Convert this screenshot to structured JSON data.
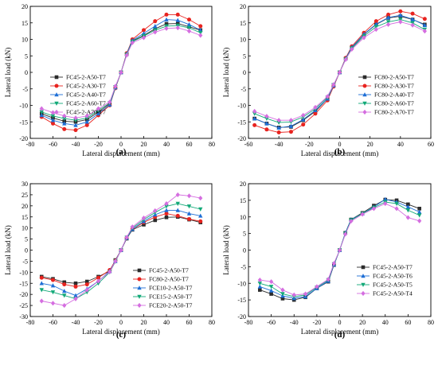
{
  "chart_data": [
    {
      "type": "line",
      "caption": "(a)",
      "xlabel": "Lateral displacement (mm)",
      "ylabel": "Lateral load (kN)",
      "xlim": [
        -80,
        80
      ],
      "ylim": [
        -20,
        20
      ],
      "xticks": [
        -80,
        -60,
        -40,
        -20,
        0,
        20,
        40,
        60,
        80
      ],
      "yticks": [
        -20,
        -15,
        -10,
        -5,
        0,
        5,
        10,
        15,
        20
      ],
      "legend": "bottom-left",
      "series": [
        {
          "name": "FC45-2-A50-T7",
          "color": "#2b2b2b",
          "marker": "square",
          "x": [
            -70,
            -60,
            -50,
            -40,
            -30,
            -20,
            -10,
            -5,
            0,
            5,
            10,
            20,
            30,
            40,
            50,
            60,
            70
          ],
          "y": [
            -12.5,
            -13.8,
            -14.8,
            -15.0,
            -14.3,
            -12.0,
            -9.5,
            -4.5,
            0,
            5.5,
            9.5,
            11.2,
            13.2,
            14.7,
            14.8,
            13.8,
            12.8
          ]
        },
        {
          "name": "FC45-2-A30-T7",
          "color": "#e8231f",
          "marker": "circle",
          "x": [
            -70,
            -60,
            -50,
            -40,
            -30,
            -20,
            -10,
            -5,
            0,
            5,
            10,
            20,
            30,
            40,
            50,
            60,
            70
          ],
          "y": [
            -13.5,
            -15.5,
            -17.2,
            -17.5,
            -16.0,
            -13.0,
            -10.0,
            -4.8,
            0,
            5.8,
            10.0,
            12.8,
            15.5,
            17.5,
            17.5,
            16.0,
            14.0
          ]
        },
        {
          "name": "FC45-2-A40-T7",
          "color": "#1e6fd6",
          "marker": "triangle",
          "x": [
            -70,
            -60,
            -50,
            -40,
            -30,
            -20,
            -10,
            -5,
            0,
            5,
            10,
            20,
            30,
            40,
            50,
            60,
            70
          ],
          "y": [
            -13.0,
            -14.5,
            -15.5,
            -16.0,
            -15.0,
            -12.5,
            -9.8,
            -4.6,
            0,
            5.6,
            9.7,
            11.8,
            14.0,
            16.0,
            15.8,
            14.5,
            12.8
          ]
        },
        {
          "name": "FC45-2-A60-T7",
          "color": "#12a978",
          "marker": "tri-down",
          "x": [
            -70,
            -60,
            -50,
            -40,
            -30,
            -20,
            -10,
            -5,
            0,
            5,
            10,
            20,
            30,
            40,
            50,
            60,
            70
          ],
          "y": [
            -12.0,
            -13.2,
            -14.0,
            -14.5,
            -13.8,
            -11.5,
            -9.3,
            -4.4,
            0,
            5.4,
            9.3,
            11.0,
            12.8,
            14.0,
            14.2,
            13.5,
            12.0
          ]
        },
        {
          "name": "FC45-2-A70-T7",
          "color": "#d56ee0",
          "marker": "diamond",
          "x": [
            -70,
            -60,
            -50,
            -40,
            -30,
            -20,
            -10,
            -5,
            0,
            5,
            10,
            20,
            30,
            40,
            50,
            60,
            70
          ],
          "y": [
            -11.0,
            -12.2,
            -13.2,
            -13.8,
            -13.2,
            -11.0,
            -9.0,
            -4.2,
            0,
            5.2,
            9.0,
            10.5,
            12.2,
            13.3,
            13.5,
            12.5,
            11.2
          ]
        }
      ]
    },
    {
      "type": "line",
      "caption": "(b)",
      "xlabel": "Lateral displacement (mm)",
      "ylabel": "Lateral load (kN)",
      "xlim": [
        -60,
        60
      ],
      "ylim": [
        -20,
        20
      ],
      "xticks": [
        -60,
        -40,
        -20,
        0,
        20,
        40,
        60
      ],
      "yticks": [
        -20,
        -15,
        -10,
        -5,
        0,
        5,
        10,
        15,
        20
      ],
      "legend": "bottom-right",
      "series": [
        {
          "name": "FC80-2-A50-T7",
          "color": "#2b2b2b",
          "marker": "square",
          "x": [
            -56,
            -48,
            -40,
            -32,
            -24,
            -16,
            -8,
            -4,
            0,
            4,
            8,
            16,
            24,
            32,
            40,
            48,
            56
          ],
          "y": [
            -14.0,
            -15.5,
            -16.7,
            -16.5,
            -14.5,
            -11.8,
            -8.0,
            -4.0,
            0,
            4.2,
            7.5,
            11.5,
            14.5,
            16.5,
            17.0,
            16.0,
            14.5
          ]
        },
        {
          "name": "FC80-2-A30-T7",
          "color": "#e8231f",
          "marker": "circle",
          "x": [
            -56,
            -48,
            -40,
            -32,
            -24,
            -16,
            -8,
            -4,
            0,
            4,
            8,
            16,
            24,
            32,
            40,
            48,
            56
          ],
          "y": [
            -16.0,
            -17.3,
            -18.2,
            -18.0,
            -15.8,
            -12.5,
            -8.5,
            -4.3,
            0,
            4.4,
            7.9,
            12.0,
            15.5,
            17.5,
            18.5,
            17.8,
            16.2
          ]
        },
        {
          "name": "FC80-2-A40-T7",
          "color": "#1e6fd6",
          "marker": "triangle",
          "x": [
            -56,
            -48,
            -40,
            -32,
            -24,
            -16,
            -8,
            -4,
            0,
            4,
            8,
            16,
            24,
            32,
            40,
            48,
            56
          ],
          "y": [
            -14.0,
            -15.5,
            -16.8,
            -16.3,
            -14.3,
            -11.5,
            -8.0,
            -4.0,
            0,
            4.2,
            7.6,
            11.6,
            14.6,
            16.6,
            17.3,
            16.1,
            14.3
          ]
        },
        {
          "name": "FC80-2-A60-T7",
          "color": "#12a978",
          "marker": "tri-down",
          "x": [
            -56,
            -48,
            -40,
            -32,
            -24,
            -16,
            -8,
            -4,
            0,
            4,
            8,
            16,
            24,
            32,
            40,
            48,
            56
          ],
          "y": [
            -12.5,
            -14.0,
            -15.2,
            -15.0,
            -13.5,
            -11.0,
            -7.6,
            -3.8,
            0,
            4.0,
            7.3,
            11.0,
            13.8,
            15.3,
            16.0,
            15.0,
            13.0
          ]
        },
        {
          "name": "FC80-2-A70-T7",
          "color": "#d56ee0",
          "marker": "diamond",
          "x": [
            -56,
            -48,
            -40,
            -32,
            -24,
            -16,
            -8,
            -4,
            0,
            4,
            8,
            16,
            24,
            32,
            40,
            48,
            56
          ],
          "y": [
            -11.8,
            -13.3,
            -14.5,
            -14.5,
            -13.0,
            -10.6,
            -7.3,
            -3.7,
            0,
            3.9,
            7.0,
            10.5,
            13.0,
            14.5,
            15.3,
            14.3,
            12.5
          ]
        }
      ]
    },
    {
      "type": "line",
      "caption": "(c)",
      "xlabel": "Lateral displacement (mm)",
      "ylabel": "Lateral load (kN)",
      "xlim": [
        -80,
        80
      ],
      "ylim": [
        -30,
        30
      ],
      "xticks": [
        -80,
        -60,
        -40,
        -20,
        0,
        20,
        40,
        60,
        80
      ],
      "yticks": [
        -30,
        -25,
        -20,
        -15,
        -10,
        -5,
        0,
        5,
        10,
        15,
        20,
        25,
        30
      ],
      "legend": "bottom-right",
      "series": [
        {
          "name": "FC45-2-A50-T7",
          "color": "#2b2b2b",
          "marker": "square",
          "x": [
            -70,
            -60,
            -50,
            -40,
            -30,
            -20,
            -10,
            -5,
            0,
            5,
            10,
            20,
            30,
            40,
            50,
            60,
            70
          ],
          "y": [
            -12.0,
            -13.0,
            -14.5,
            -15.0,
            -14.2,
            -12.0,
            -9.5,
            -4.5,
            0,
            5.2,
            9.2,
            11.5,
            13.5,
            14.8,
            15.0,
            13.8,
            12.5
          ]
        },
        {
          "name": "FC80-2-A50-T7",
          "color": "#e8231f",
          "marker": "circle",
          "x": [
            -70,
            -60,
            -50,
            -40,
            -30,
            -20,
            -10,
            -5,
            0,
            5,
            10,
            20,
            30,
            40,
            50,
            60,
            70
          ],
          "y": [
            -12.5,
            -13.5,
            -15.5,
            -16.5,
            -15.5,
            -12.5,
            -9.0,
            -4.8,
            0,
            5.5,
            9.5,
            12.5,
            15.0,
            16.5,
            15.5,
            14.0,
            13.0
          ]
        },
        {
          "name": "FCE10-2-A50-T7",
          "color": "#1e6fd6",
          "marker": "triangle",
          "x": [
            -70,
            -60,
            -50,
            -40,
            -30,
            -20,
            -10,
            -5,
            0,
            5,
            10,
            20,
            30,
            40,
            50,
            60,
            70
          ],
          "y": [
            -15.0,
            -16.0,
            -18.5,
            -20.5,
            -17.5,
            -14.0,
            -9.5,
            -5.0,
            0,
            5.5,
            9.5,
            13.0,
            16.0,
            18.0,
            18.0,
            16.5,
            15.5
          ]
        },
        {
          "name": "FCE15-2-A50-T7",
          "color": "#12a978",
          "marker": "tri-down",
          "x": [
            -70,
            -60,
            -50,
            -40,
            -30,
            -20,
            -10,
            -5,
            0,
            5,
            10,
            20,
            30,
            40,
            50,
            60,
            70
          ],
          "y": [
            -18.0,
            -19.0,
            -20.5,
            -22.0,
            -19.0,
            -15.0,
            -10.0,
            -5.2,
            0,
            5.7,
            10.0,
            13.8,
            17.0,
            19.8,
            21.0,
            19.8,
            18.5
          ]
        },
        {
          "name": "FCE20-2-A50-T7",
          "color": "#d56ee0",
          "marker": "diamond",
          "x": [
            -70,
            -60,
            -50,
            -40,
            -30,
            -20,
            -10,
            -5,
            0,
            5,
            10,
            20,
            30,
            40,
            50,
            60,
            70
          ],
          "y": [
            -23.0,
            -24.0,
            -25.0,
            -22.0,
            -18.0,
            -14.0,
            -9.8,
            -5.0,
            0,
            5.8,
            10.5,
            14.5,
            17.8,
            21.0,
            25.0,
            24.5,
            23.5
          ]
        }
      ]
    },
    {
      "type": "line",
      "caption": "(d)",
      "xlabel": "Lateral displacement (mm)",
      "ylabel": "Lateral load (kN)",
      "xlim": [
        -80,
        80
      ],
      "ylim": [
        -20,
        20
      ],
      "xticks": [
        -80,
        -60,
        -40,
        -20,
        0,
        20,
        40,
        60,
        80
      ],
      "yticks": [
        -20,
        -15,
        -10,
        -5,
        0,
        5,
        10,
        15,
        20
      ],
      "legend": "bottom-right",
      "series": [
        {
          "name": "FC45-2-A50-T7",
          "color": "#2b2b2b",
          "marker": "square",
          "x": [
            -70,
            -60,
            -50,
            -40,
            -30,
            -20,
            -10,
            -5,
            0,
            5,
            10,
            20,
            30,
            40,
            50,
            60,
            70
          ],
          "y": [
            -12.0,
            -13.2,
            -14.6,
            -15.0,
            -14.2,
            -11.5,
            -9.5,
            -4.5,
            0,
            5.2,
            9.2,
            11.2,
            13.4,
            15.2,
            15.0,
            13.8,
            12.5
          ]
        },
        {
          "name": "FC45-2-A50-T6",
          "color": "#1e6fd6",
          "marker": "triangle",
          "x": [
            -70,
            -60,
            -50,
            -40,
            -30,
            -20,
            -10,
            -5,
            0,
            5,
            10,
            20,
            30,
            40,
            50,
            60,
            70
          ],
          "y": [
            -11.0,
            -12.2,
            -13.8,
            -14.5,
            -14.0,
            -11.5,
            -9.3,
            -4.4,
            0,
            5.2,
            9.2,
            11.0,
            13.0,
            15.3,
            14.5,
            13.0,
            11.5
          ]
        },
        {
          "name": "FC45-2-A50-T5",
          "color": "#12a978",
          "marker": "tri-down",
          "x": [
            -70,
            -60,
            -50,
            -40,
            -30,
            -20,
            -10,
            -5,
            0,
            5,
            10,
            20,
            30,
            40,
            50,
            60,
            70
          ],
          "y": [
            -10.0,
            -11.0,
            -13.2,
            -14.0,
            -13.5,
            -11.2,
            -9.0,
            -4.2,
            0,
            5.0,
            9.0,
            11.0,
            12.8,
            14.5,
            14.0,
            12.0,
            10.5
          ]
        },
        {
          "name": "FC45-2-A50-T4",
          "color": "#d56ee0",
          "marker": "diamond",
          "x": [
            -70,
            -60,
            -50,
            -40,
            -30,
            -20,
            -10,
            -5,
            0,
            5,
            10,
            20,
            30,
            40,
            50,
            60,
            70
          ],
          "y": [
            -9.0,
            -9.5,
            -12.0,
            -13.5,
            -13.2,
            -11.0,
            -8.8,
            -4.0,
            0,
            4.8,
            8.7,
            10.8,
            12.5,
            14.0,
            12.5,
            9.8,
            8.8
          ]
        }
      ]
    }
  ]
}
